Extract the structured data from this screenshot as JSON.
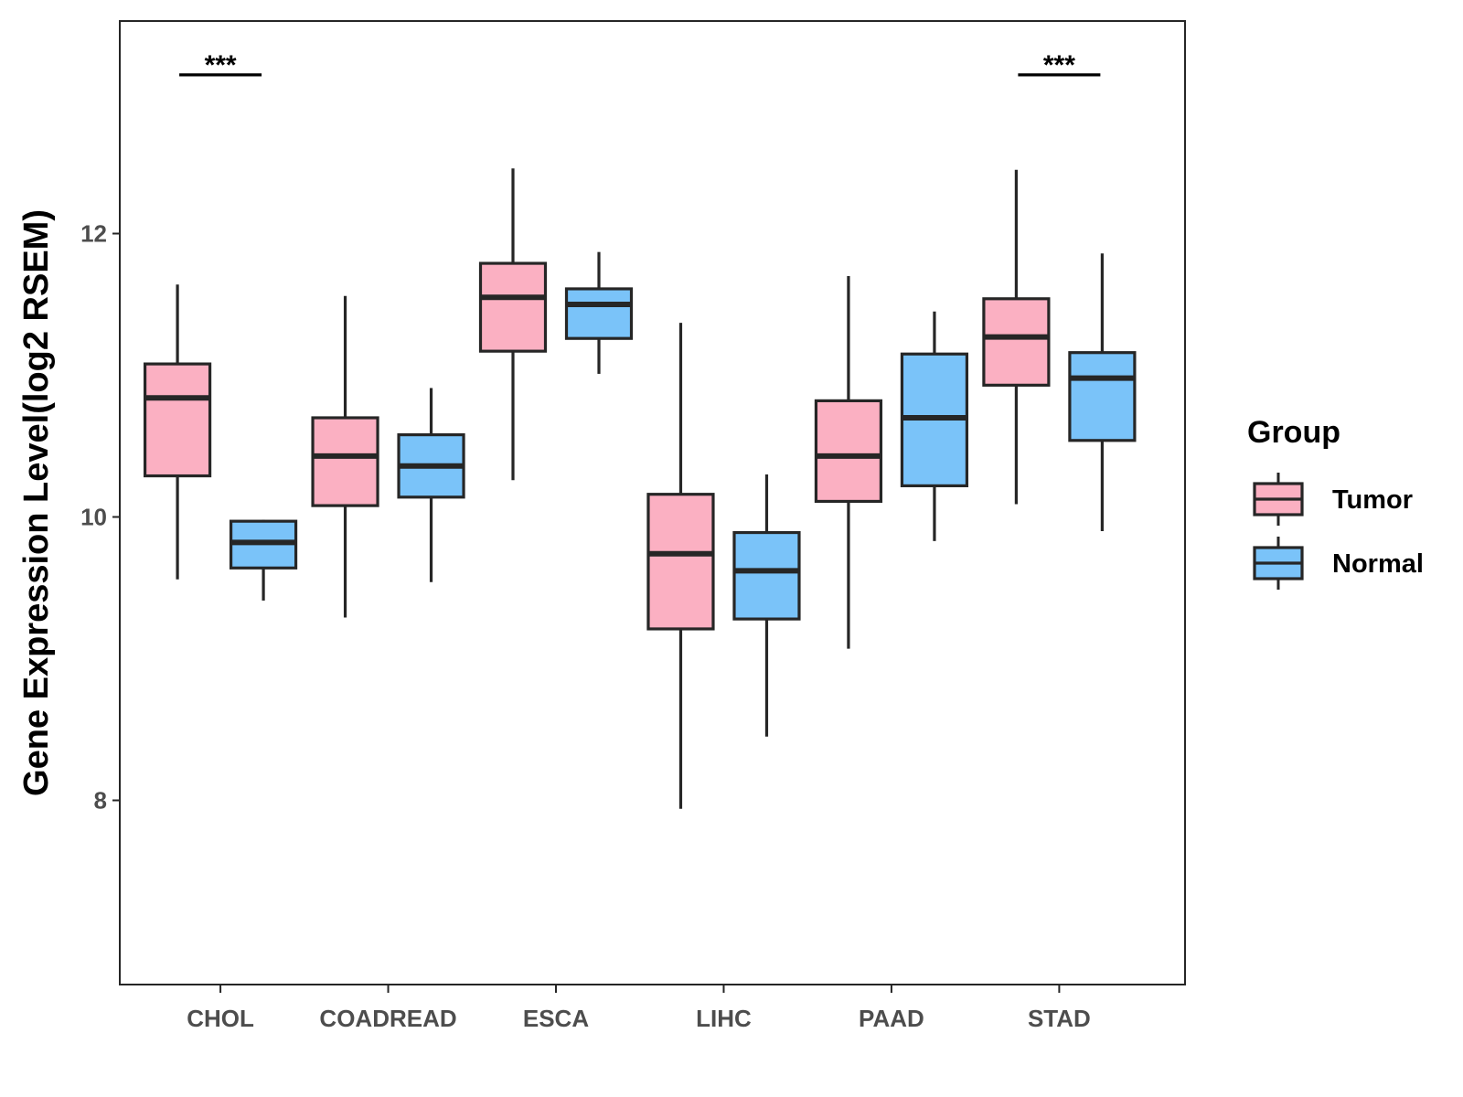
{
  "chart_data": {
    "type": "box",
    "title": "",
    "xlabel": "",
    "ylabel": "Gene Expression Level(log2 RSEM)",
    "ylim": [
      6.7,
      13.5
    ],
    "yticks": [
      8,
      10,
      12
    ],
    "grid": false,
    "legend": {
      "title": "Group",
      "placement": "right",
      "entries": [
        "Tumor",
        "Normal"
      ]
    },
    "colors": {
      "Tumor": "#FBB0C2",
      "Normal": "#7AC3F9",
      "outline": "#262626"
    },
    "categories": [
      "CHOL",
      "COADREAD",
      "ESCA",
      "LIHC",
      "PAAD",
      "STAD"
    ],
    "series": [
      {
        "name": "Tumor",
        "boxes": [
          {
            "category": "CHOL",
            "min": 9.56,
            "q1": 10.29,
            "median": 10.84,
            "q3": 11.08,
            "max": 11.64
          },
          {
            "category": "COADREAD",
            "min": 9.29,
            "q1": 10.08,
            "median": 10.43,
            "q3": 10.7,
            "max": 11.56
          },
          {
            "category": "ESCA",
            "min": 10.26,
            "q1": 11.17,
            "median": 11.55,
            "q3": 11.79,
            "max": 12.46
          },
          {
            "category": "LIHC",
            "min": 7.94,
            "q1": 9.21,
            "median": 9.74,
            "q3": 10.16,
            "max": 11.37
          },
          {
            "category": "PAAD",
            "min": 9.07,
            "q1": 10.11,
            "median": 10.43,
            "q3": 10.82,
            "max": 11.7
          },
          {
            "category": "STAD",
            "min": 10.09,
            "q1": 10.93,
            "median": 11.27,
            "q3": 11.54,
            "max": 12.45
          }
        ]
      },
      {
        "name": "Normal",
        "boxes": [
          {
            "category": "CHOL",
            "min": 9.41,
            "q1": 9.64,
            "median": 9.82,
            "q3": 9.97,
            "max": 9.98
          },
          {
            "category": "COADREAD",
            "min": 9.54,
            "q1": 10.14,
            "median": 10.36,
            "q3": 10.58,
            "max": 10.91
          },
          {
            "category": "ESCA",
            "min": 11.01,
            "q1": 11.26,
            "median": 11.5,
            "q3": 11.61,
            "max": 11.87
          },
          {
            "category": "LIHC",
            "min": 8.45,
            "q1": 9.28,
            "median": 9.62,
            "q3": 9.89,
            "max": 10.3
          },
          {
            "category": "PAAD",
            "min": 9.83,
            "q1": 10.22,
            "median": 10.7,
            "q3": 11.15,
            "max": 11.45
          },
          {
            "category": "STAD",
            "min": 9.9,
            "q1": 10.54,
            "median": 10.98,
            "q3": 11.16,
            "max": 11.86
          }
        ]
      }
    ],
    "annotations": [
      {
        "category": "CHOL",
        "text": "***",
        "y": 13.12
      },
      {
        "category": "STAD",
        "text": "***",
        "y": 13.12
      }
    ]
  }
}
